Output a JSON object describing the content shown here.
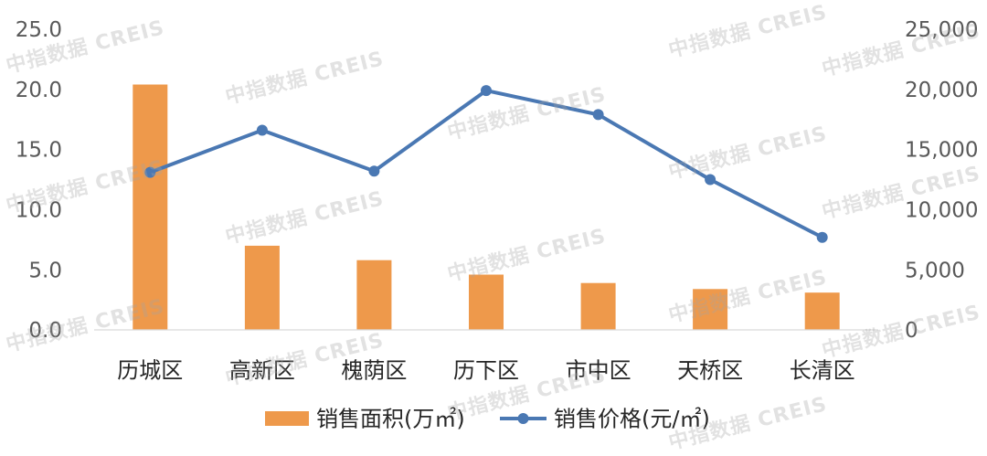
{
  "watermark": {
    "text": "中指数据 CREIS"
  },
  "chart_data": {
    "type": "bar",
    "categories": [
      "历城区",
      "高新区",
      "槐荫区",
      "历下区",
      "市中区",
      "天桥区",
      "长清区"
    ],
    "series": [
      {
        "name": "销售面积(万㎡)",
        "type": "bar",
        "axis": "left",
        "color": "#EE994B",
        "values": [
          20.4,
          7.0,
          5.8,
          4.6,
          3.9,
          3.4,
          3.1
        ]
      },
      {
        "name": "销售价格(元/㎡)",
        "type": "line",
        "axis": "right",
        "marker": "circle",
        "color": "#4A78B3",
        "values": [
          13100,
          16600,
          13200,
          19900,
          17900,
          12500,
          7700
        ]
      }
    ],
    "y_left": {
      "ylim": [
        0,
        25
      ],
      "ticks": [
        0,
        5,
        10,
        15,
        20,
        25
      ],
      "tick_labels": [
        "0.0",
        "5.0",
        "10.0",
        "15.0",
        "20.0",
        "25.0"
      ]
    },
    "y_right": {
      "ylim": [
        0,
        25000
      ],
      "ticks": [
        0,
        5000,
        10000,
        15000,
        20000,
        25000
      ],
      "tick_labels": [
        "0",
        "5,000",
        "10,000",
        "15,000",
        "20,000",
        "25,000"
      ]
    },
    "legend": "bottom",
    "grid": false
  }
}
